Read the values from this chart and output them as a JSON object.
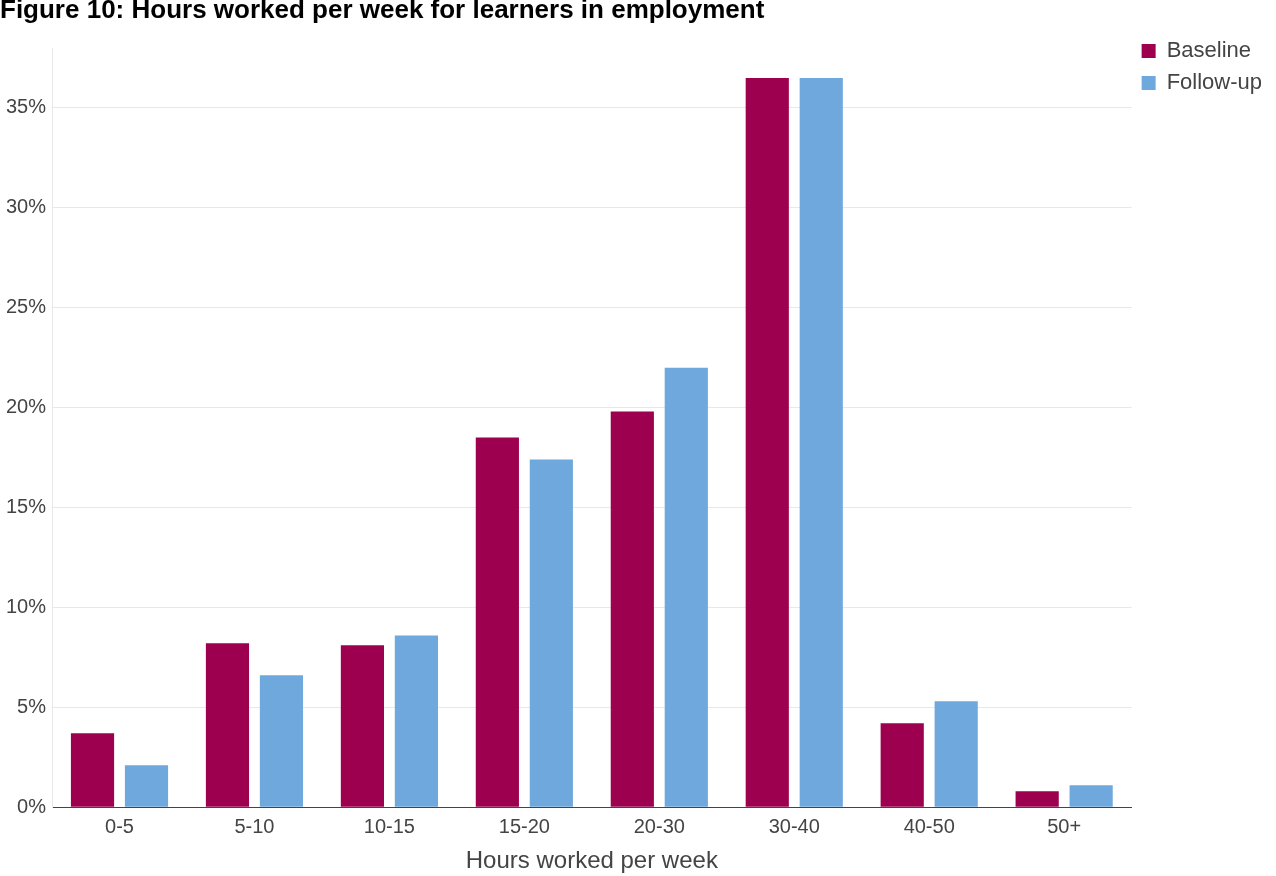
{
  "chart_data": {
    "type": "bar",
    "title": "Figure 10: Hours worked per week for learners in employment",
    "xlabel": "Hours worked per week",
    "categories": [
      "0-5",
      "5-10",
      "10-15",
      "15-20",
      "20-30",
      "30-40",
      "40-50",
      "50+"
    ],
    "series": [
      {
        "name": "Baseline",
        "color": "#9e0050",
        "values": [
          3.7,
          8.2,
          8.1,
          18.5,
          19.8,
          36.5,
          4.2,
          0.8
        ]
      },
      {
        "name": "Follow-up",
        "color": "#6fa8dc",
        "values": [
          2.1,
          6.6,
          8.6,
          17.4,
          22.0,
          36.5,
          5.3,
          1.1
        ]
      }
    ],
    "ylim": [
      0,
      38
    ],
    "yticks": [
      {
        "value": 0,
        "label": "0%"
      },
      {
        "value": 5,
        "label": "5%"
      },
      {
        "value": 10,
        "label": "10%"
      },
      {
        "value": 15,
        "label": "15%"
      },
      {
        "value": 20,
        "label": "20%"
      },
      {
        "value": 25,
        "label": "25%"
      },
      {
        "value": 30,
        "label": "30%"
      },
      {
        "value": 35,
        "label": "35%"
      }
    ],
    "grid": "y",
    "legend": "top right"
  }
}
